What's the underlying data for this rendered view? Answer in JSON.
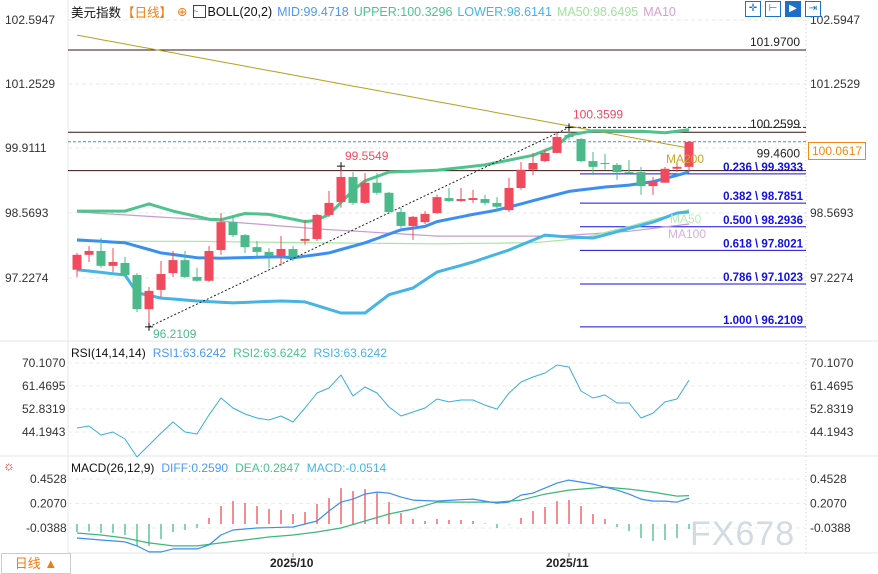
{
  "header": {
    "instrument": "美元指数",
    "period": "【日线】",
    "indicator": "BOLL(20,2)",
    "mid": "MID:99.4718",
    "upper": "UPPER:100.3296",
    "lower": "LOWER:98.6141",
    "ma50": "MA50:98.6495",
    "ma10": "MA10"
  },
  "toolbar_icons": [
    "crosshair-icon",
    "fit-icon",
    "play-icon",
    "exit-icon"
  ],
  "colors": {
    "up": "#f04a5c",
    "down": "#4cb98a",
    "upper": "#4cc48c",
    "mid": "#3a8ff0",
    "lower": "#45b4e6",
    "ma200": "#b8a020",
    "ma50": "#a3e8a0",
    "ma100": "#c99ad0",
    "fib": "#1010e0",
    "rsi": "#3aaee0",
    "diff": "#3a8ff0",
    "dea": "#3cb878",
    "accent": "#f07c10"
  },
  "price_axis": [
    "102.5947",
    "101.2529",
    "99.9111",
    "98.5693",
    "97.2274"
  ],
  "price_tag": "100.0617",
  "annotations": {
    "high": "100.3599",
    "mid_high": "99.5549",
    "low": "96.2109",
    "ma200": "MA200",
    "ma50": "MA50",
    "ma100": "MA100"
  },
  "levels": [
    {
      "price": 101.97,
      "label": "101.9700"
    },
    {
      "price": 100.2599,
      "label": "100.2599"
    },
    {
      "price": 99.46,
      "label": "99.4600"
    }
  ],
  "fib": [
    {
      "ratio": "0.236",
      "price": 99.3933,
      "label": "0.236 \\ 99.3933"
    },
    {
      "ratio": "0.382",
      "price": 98.7851,
      "label": "0.382 \\ 98.7851"
    },
    {
      "ratio": "0.500",
      "price": 98.2936,
      "label": "0.500 \\ 98.2936"
    },
    {
      "ratio": "0.618",
      "price": 97.8021,
      "label": "0.618 \\ 97.8021"
    },
    {
      "ratio": "0.786",
      "price": 97.1023,
      "label": "0.786 \\ 97.1023"
    },
    {
      "ratio": "1.000",
      "price": 96.2109,
      "label": "1.000 \\ 96.2109"
    }
  ],
  "candles": [
    [
      97.4,
      97.75,
      97.25,
      97.71
    ],
    [
      97.71,
      97.89,
      97.56,
      97.79
    ],
    [
      97.79,
      98.06,
      97.44,
      97.48
    ],
    [
      97.48,
      97.85,
      97.35,
      97.56
    ],
    [
      97.54,
      97.67,
      97.25,
      97.29
    ],
    [
      97.29,
      97.33,
      96.52,
      96.58
    ],
    [
      96.58,
      97.04,
      96.21,
      96.96
    ],
    [
      96.98,
      97.58,
      96.83,
      97.31
    ],
    [
      97.33,
      97.79,
      97.25,
      97.6
    ],
    [
      97.6,
      97.79,
      97.22,
      97.25
    ],
    [
      97.25,
      97.44,
      97.15,
      97.17
    ],
    [
      97.17,
      97.89,
      97.15,
      97.79
    ],
    [
      97.81,
      98.58,
      97.71,
      98.39
    ],
    [
      98.39,
      98.5,
      98.08,
      98.12
    ],
    [
      98.12,
      98.14,
      97.75,
      97.87
    ],
    [
      97.87,
      98.0,
      97.67,
      97.77
    ],
    [
      97.77,
      97.85,
      97.44,
      97.69
    ],
    [
      97.69,
      98.1,
      97.48,
      97.83
    ],
    [
      97.83,
      97.89,
      97.58,
      97.67
    ],
    [
      98.0,
      98.44,
      97.92,
      98.04
    ],
    [
      98.04,
      98.56,
      98.0,
      98.54
    ],
    [
      98.54,
      99.04,
      98.5,
      98.79
    ],
    [
      98.81,
      99.55,
      98.69,
      99.33
    ],
    [
      99.33,
      99.43,
      98.75,
      98.79
    ],
    [
      98.79,
      99.41,
      98.77,
      99.21
    ],
    [
      99.21,
      99.41,
      98.96,
      99.0
    ],
    [
      99.0,
      99.02,
      98.58,
      98.6
    ],
    [
      98.6,
      98.69,
      98.27,
      98.31
    ],
    [
      98.31,
      98.52,
      98.02,
      98.5
    ],
    [
      98.39,
      98.62,
      98.35,
      98.56
    ],
    [
      98.58,
      98.96,
      98.56,
      98.91
    ],
    [
      98.89,
      99.1,
      98.81,
      98.83
    ],
    [
      98.83,
      99.1,
      98.81,
      98.87
    ],
    [
      98.85,
      99.06,
      98.79,
      98.89
    ],
    [
      98.87,
      98.96,
      98.75,
      98.79
    ],
    [
      98.79,
      98.91,
      98.64,
      98.71
    ],
    [
      98.64,
      99.31,
      98.6,
      99.1
    ],
    [
      99.1,
      99.64,
      99.06,
      99.48
    ],
    [
      99.48,
      99.83,
      99.37,
      99.62
    ],
    [
      99.66,
      99.89,
      99.64,
      99.83
    ],
    [
      99.83,
      100.25,
      99.83,
      100.16
    ],
    [
      100.2,
      100.36,
      100.1,
      100.16
    ],
    [
      100.12,
      100.14,
      99.64,
      99.66
    ],
    [
      99.66,
      99.85,
      99.37,
      99.54
    ],
    [
      99.62,
      99.81,
      99.48,
      99.6
    ],
    [
      99.58,
      99.62,
      99.27,
      99.43
    ],
    [
      99.43,
      99.68,
      99.41,
      99.41
    ],
    [
      99.43,
      99.54,
      98.96,
      99.14
    ],
    [
      99.14,
      99.33,
      98.96,
      99.23
    ],
    [
      99.21,
      99.54,
      99.21,
      99.5
    ],
    [
      99.5,
      99.64,
      99.43,
      99.54
    ],
    [
      99.54,
      100.08,
      99.43,
      100.06
    ]
  ],
  "bands": {
    "upper": [
      [
        0,
        98.62
      ],
      [
        4,
        98.62
      ],
      [
        6,
        98.77
      ],
      [
        8,
        98.62
      ],
      [
        11,
        98.45
      ],
      [
        12,
        98.44
      ],
      [
        14,
        98.57
      ],
      [
        16,
        98.55
      ],
      [
        19,
        98.4
      ],
      [
        20,
        98.43
      ],
      [
        21,
        98.55
      ],
      [
        22,
        98.8
      ],
      [
        23,
        99.05
      ],
      [
        24,
        99.25
      ],
      [
        26,
        99.43
      ],
      [
        30,
        99.47
      ],
      [
        34,
        99.58
      ],
      [
        38,
        99.78
      ],
      [
        40,
        99.98
      ],
      [
        41,
        100.2
      ],
      [
        43,
        100.29
      ],
      [
        47,
        100.28
      ],
      [
        49,
        100.25
      ],
      [
        51,
        100.31
      ]
    ],
    "mid": [
      [
        0,
        98.02
      ],
      [
        4,
        97.96
      ],
      [
        7,
        97.75
      ],
      [
        10,
        97.65
      ],
      [
        12,
        97.64
      ],
      [
        17,
        97.67
      ],
      [
        18,
        97.645
      ],
      [
        21,
        97.75
      ],
      [
        24,
        97.96
      ],
      [
        27,
        98.23
      ],
      [
        29,
        98.3
      ],
      [
        30,
        98.4
      ],
      [
        33,
        98.55
      ],
      [
        35,
        98.64
      ],
      [
        39,
        98.9
      ],
      [
        41,
        99.03
      ],
      [
        44,
        99.12
      ],
      [
        46,
        99.16
      ],
      [
        48,
        99.23
      ],
      [
        51,
        99.43
      ]
    ],
    "lower": [
      [
        0,
        97.4
      ],
      [
        4,
        97.29
      ],
      [
        5,
        96.92
      ],
      [
        7,
        96.81
      ],
      [
        10,
        96.75
      ],
      [
        13,
        96.71
      ],
      [
        17,
        96.75
      ],
      [
        19,
        96.73
      ],
      [
        22,
        96.5
      ],
      [
        24,
        96.5
      ],
      [
        26,
        96.88
      ],
      [
        28,
        97.02
      ],
      [
        30,
        97.35
      ],
      [
        33,
        97.56
      ],
      [
        36,
        97.81
      ],
      [
        39,
        98.12
      ],
      [
        41,
        98.08
      ],
      [
        43,
        98.06
      ],
      [
        45,
        98.19
      ],
      [
        48,
        98.39
      ],
      [
        50,
        98.58
      ],
      [
        51,
        98.6
      ]
    ],
    "ma200": [
      [
        0,
        102.28
      ],
      [
        51,
        99.93
      ]
    ],
    "ma50": [
      [
        0,
        97.99
      ],
      [
        10,
        97.99
      ],
      [
        20,
        97.96
      ],
      [
        30,
        97.94
      ],
      [
        38,
        97.96
      ],
      [
        42,
        98.05
      ],
      [
        46,
        98.3
      ],
      [
        51,
        98.65
      ]
    ],
    "ma100": [
      [
        0,
        98.6
      ],
      [
        10,
        98.45
      ],
      [
        20,
        98.25
      ],
      [
        30,
        98.1
      ],
      [
        40,
        98.1
      ],
      [
        46,
        98.2
      ],
      [
        51,
        98.35
      ]
    ]
  },
  "rsi": {
    "title": "RSI(14,14,14)",
    "rsi1": "RSI1:63.6242",
    "rsi2": "RSI2:63.6242",
    "rsi3": "RSI3:63.6242",
    "axis": [
      "70.1070",
      "61.4695",
      "52.8319",
      "44.1943"
    ],
    "values": [
      45.7,
      46.45,
      43.07,
      44.2,
      41.57,
      34.8,
      39.3,
      43.8,
      47.95,
      44.2,
      43.45,
      50.6,
      56.96,
      53.2,
      50.96,
      49.45,
      48.7,
      50.2,
      47.95,
      53.2,
      58.84,
      60.72,
      65.6,
      57.7,
      61.1,
      58.84,
      53.6,
      50.2,
      51.7,
      53.2,
      56.6,
      55.5,
      56.2,
      56.2,
      54.3,
      52.8,
      58.8,
      62.97,
      64.85,
      66.35,
      69.35,
      68.6,
      59.6,
      56.96,
      58.1,
      55.1,
      55.1,
      49.45,
      51.3,
      55.5,
      56.6,
      63.62
    ]
  },
  "macd": {
    "title": "MACD(26,12,9)",
    "diff_label": "DIFF:0.2590",
    "dea_label": "DEA:0.2847",
    "macd_label": "MACD:-0.0514",
    "axis": [
      "0.4528",
      "0.2070",
      "-0.0388"
    ],
    "hist": [
      -0.08,
      -0.075,
      -0.09,
      -0.09,
      -0.11,
      -0.22,
      -0.22,
      -0.15,
      -0.08,
      -0.06,
      -0.04,
      0.06,
      0.18,
      0.23,
      0.21,
      0.18,
      0.15,
      0.14,
      0.1,
      0.12,
      0.2,
      0.26,
      0.36,
      0.33,
      0.35,
      0.31,
      0.22,
      0.11,
      0.05,
      0.03,
      0.05,
      0.04,
      0.04,
      0.03,
      0.005,
      -0.04,
      -0.005,
      0.06,
      0.13,
      0.17,
      0.23,
      0.24,
      0.18,
      0.1,
      0.05,
      -0.03,
      -0.07,
      -0.14,
      -0.17,
      -0.16,
      -0.14,
      -0.05
    ],
    "diff": [
      [
        0,
        -0.14
      ],
      [
        2,
        -0.16
      ],
      [
        4,
        -0.18
      ],
      [
        5,
        -0.22
      ],
      [
        6,
        -0.28
      ],
      [
        7,
        -0.28
      ],
      [
        8,
        -0.25
      ],
      [
        10,
        -0.25
      ],
      [
        11,
        -0.21
      ],
      [
        12,
        -0.11
      ],
      [
        13,
        -0.06
      ],
      [
        15,
        -0.04
      ],
      [
        18,
        -0.03
      ],
      [
        20,
        0.03
      ],
      [
        21,
        0.13
      ],
      [
        22,
        0.22
      ],
      [
        23,
        0.25
      ],
      [
        24,
        0.3
      ],
      [
        25,
        0.32
      ],
      [
        26,
        0.31
      ],
      [
        27,
        0.27
      ],
      [
        28,
        0.24
      ],
      [
        30,
        0.23
      ],
      [
        33,
        0.25
      ],
      [
        35,
        0.21
      ],
      [
        36,
        0.22
      ],
      [
        37,
        0.29
      ],
      [
        38,
        0.31
      ],
      [
        39,
        0.36
      ],
      [
        40,
        0.41
      ],
      [
        41,
        0.44
      ],
      [
        42,
        0.42
      ],
      [
        43,
        0.4
      ],
      [
        44,
        0.37
      ],
      [
        45,
        0.34
      ],
      [
        46,
        0.3
      ],
      [
        47,
        0.25
      ],
      [
        48,
        0.23
      ],
      [
        49,
        0.23
      ],
      [
        50,
        0.22
      ],
      [
        51,
        0.259
      ]
    ],
    "dea": [
      [
        0,
        -0.09
      ],
      [
        2,
        -0.11
      ],
      [
        4,
        -0.14
      ],
      [
        6,
        -0.19
      ],
      [
        8,
        -0.22
      ],
      [
        10,
        -0.22
      ],
      [
        12,
        -0.19
      ],
      [
        14,
        -0.16
      ],
      [
        16,
        -0.13
      ],
      [
        18,
        -0.11
      ],
      [
        20,
        -0.08
      ],
      [
        22,
        -0.04
      ],
      [
        24,
        0.03
      ],
      [
        26,
        0.1
      ],
      [
        28,
        0.15
      ],
      [
        30,
        0.22
      ],
      [
        35,
        0.22
      ],
      [
        37,
        0.24
      ],
      [
        39,
        0.3
      ],
      [
        41,
        0.34
      ],
      [
        43,
        0.36
      ],
      [
        44,
        0.37
      ],
      [
        46,
        0.35
      ],
      [
        48,
        0.32
      ],
      [
        50,
        0.28
      ],
      [
        51,
        0.2847
      ]
    ]
  },
  "x_axis": [
    {
      "index": 18,
      "label": "2025/10"
    },
    {
      "index": 41,
      "label": "2025/11"
    }
  ],
  "period_button": "日线 ▲",
  "watermark": "FX678"
}
